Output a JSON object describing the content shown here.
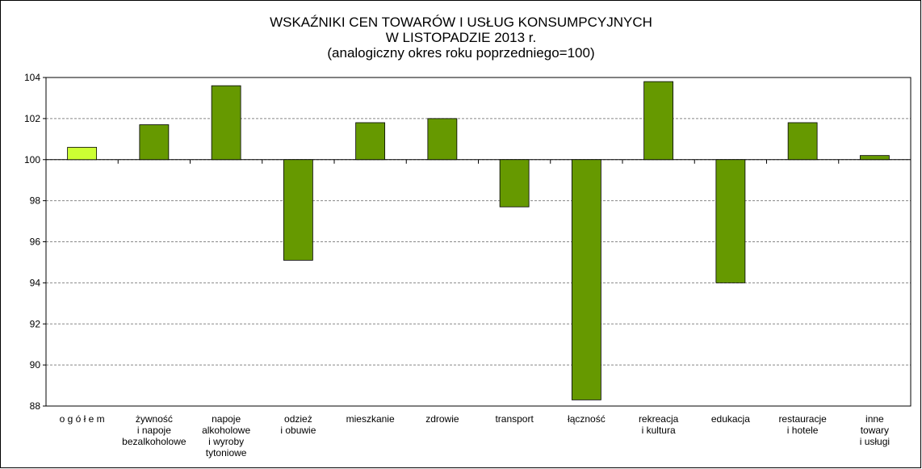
{
  "chart_data": {
    "type": "bar",
    "title": [
      "WSKAŹNIKI CEN TOWARÓW I USŁUG KONSUMPCYJNYCH",
      "W  LISTOPADZIE 2013 r.",
      "(analogiczny okres roku poprzedniego=100)"
    ],
    "categories": [
      [
        "o g ó ł e m"
      ],
      [
        "żywność",
        "i napoje",
        "bezalkoholowe"
      ],
      [
        "napoje",
        "alkoholowe",
        "i wyroby",
        "tytoniowe"
      ],
      [
        "odzież",
        "i obuwie"
      ],
      [
        "mieszkanie"
      ],
      [
        "zdrowie"
      ],
      [
        "transport"
      ],
      [
        "łączność"
      ],
      [
        "rekreacja",
        "i kultura"
      ],
      [
        "edukacja"
      ],
      [
        "restauracje",
        "i hotele"
      ],
      [
        "inne",
        "towary",
        "i usługi"
      ]
    ],
    "values": [
      100.6,
      101.7,
      103.6,
      95.1,
      101.8,
      102.0,
      97.7,
      88.3,
      103.8,
      94.0,
      101.8,
      100.2
    ],
    "colors": [
      "#ccff33",
      "#669900",
      "#669900",
      "#669900",
      "#669900",
      "#669900",
      "#669900",
      "#669900",
      "#669900",
      "#669900",
      "#669900",
      "#669900"
    ],
    "baseline": 100,
    "ylim": [
      88,
      104
    ],
    "yticks": [
      88,
      90,
      92,
      94,
      96,
      98,
      100,
      102,
      104
    ],
    "grid": true
  }
}
